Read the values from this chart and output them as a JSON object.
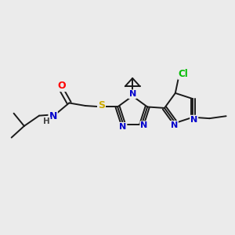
{
  "background_color": "#ebebeb",
  "bond_color": "#1a1a1a",
  "atom_colors": {
    "O": "#ff0000",
    "N": "#0000cc",
    "S": "#ccaa00",
    "Cl": "#00bb00",
    "H": "#444444",
    "C": "#1a1a1a"
  },
  "figsize": [
    3.0,
    3.0
  ],
  "dpi": 100
}
